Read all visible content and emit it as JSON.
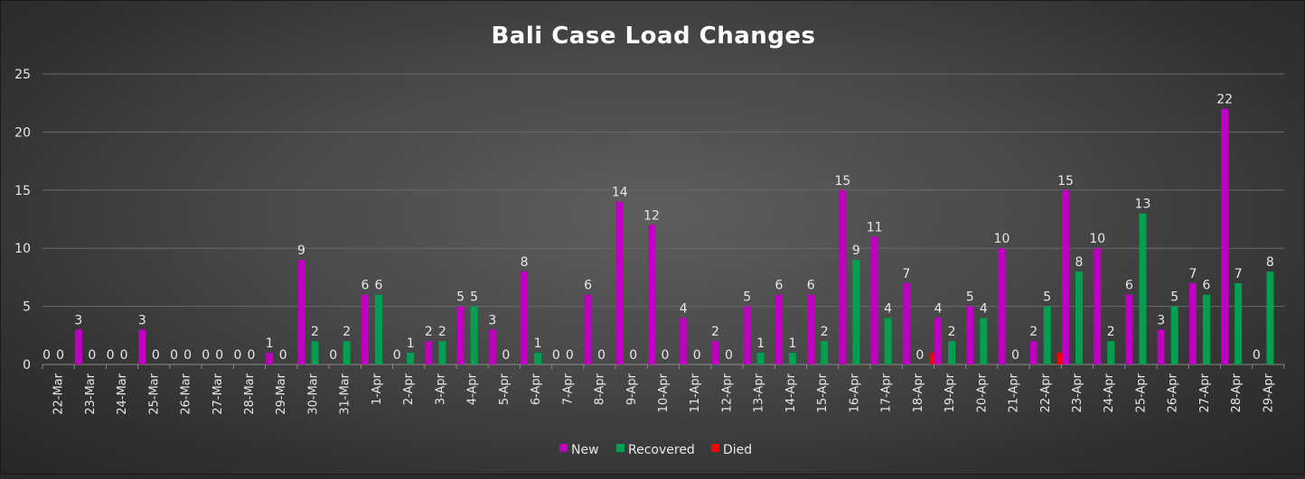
{
  "chart_data": {
    "type": "bar",
    "title": "Bali Case Load Changes",
    "xlabel": "",
    "ylabel": "",
    "ylim": [
      0,
      25
    ],
    "yticks": [
      0,
      5,
      10,
      15,
      20,
      25
    ],
    "grid": true,
    "legend_position": "bottom",
    "categories": [
      "22-Mar",
      "23-Mar",
      "24-Mar",
      "25-Mar",
      "26-Mar",
      "27-Mar",
      "28-Mar",
      "29-Mar",
      "30-Mar",
      "31-Mar",
      "1-Apr",
      "2-Apr",
      "3-Apr",
      "4-Apr",
      "5-Apr",
      "6-Apr",
      "7-Apr",
      "8-Apr",
      "9-Apr",
      "10-Apr",
      "11-Apr",
      "12-Apr",
      "13-Apr",
      "14-Apr",
      "15-Apr",
      "16-Apr",
      "17-Apr",
      "18-Apr",
      "19-Apr",
      "20-Apr",
      "21-Apr",
      "22-Apr",
      "23-Apr",
      "24-Apr",
      "25-Apr",
      "26-Apr",
      "27-Apr",
      "28-Apr",
      "29-Apr"
    ],
    "series": [
      {
        "name": "New",
        "color": "#c000c0",
        "values": [
          0,
          3,
          0,
          3,
          0,
          0,
          0,
          1,
          9,
          0,
          6,
          0,
          2,
          5,
          3,
          8,
          0,
          6,
          14,
          12,
          4,
          2,
          5,
          6,
          6,
          15,
          11,
          7,
          4,
          5,
          10,
          2,
          15,
          10,
          6,
          3,
          7,
          22,
          0
        ],
        "labels": [
          "0",
          "3",
          "0",
          "3",
          "0",
          "0",
          "0",
          "1",
          "9",
          "0",
          "6",
          "0",
          "2",
          "5",
          "3",
          "8",
          "0",
          "6",
          "14",
          "12",
          "4",
          "2",
          "5",
          "6",
          "6",
          "15",
          "11",
          "7",
          "4",
          "5",
          "10",
          "2",
          "15",
          "10",
          "6",
          "3",
          "7",
          "22",
          "0"
        ]
      },
      {
        "name": "Recovered",
        "color": "#00a050",
        "values": [
          0,
          0,
          0,
          0,
          0,
          0,
          0,
          0,
          2,
          2,
          6,
          1,
          2,
          5,
          0,
          1,
          0,
          0,
          0,
          0,
          0,
          0,
          1,
          1,
          2,
          9,
          4,
          0,
          2,
          4,
          0,
          5,
          8,
          2,
          13,
          5,
          6,
          7,
          8
        ],
        "labels": [
          "0",
          "0",
          "0",
          "0",
          "0",
          "0",
          "0",
          "0",
          "2",
          "2",
          "6",
          "1",
          "2",
          "5",
          "0",
          "1",
          "0",
          "0",
          "0",
          "0",
          "0",
          "0",
          "1",
          "1",
          "2",
          "9",
          "4",
          "0",
          "2",
          "4",
          "0",
          "5",
          "8",
          "2",
          "13",
          "5",
          "6",
          "7",
          "8"
        ]
      },
      {
        "name": "Died",
        "color": "#ff0000",
        "values": [
          0,
          0,
          0,
          0,
          0,
          0,
          0,
          0,
          0,
          0,
          0,
          0,
          0,
          0,
          0,
          0,
          0,
          0,
          0,
          0,
          0,
          0,
          0,
          0,
          0,
          0,
          0,
          1,
          0,
          0,
          0,
          1,
          0,
          0,
          0,
          0,
          0,
          0,
          0
        ],
        "labels": [
          "",
          "",
          "",
          "",
          "",
          "",
          "",
          "",
          "",
          "",
          "",
          "",
          "",
          "",
          "",
          "",
          "",
          "",
          "",
          "",
          "",
          "",
          "",
          "",
          "",
          "",
          "",
          "",
          "",
          "",
          "",
          "",
          "",
          "",
          "",
          "",
          "",
          "",
          ""
        ]
      }
    ]
  }
}
